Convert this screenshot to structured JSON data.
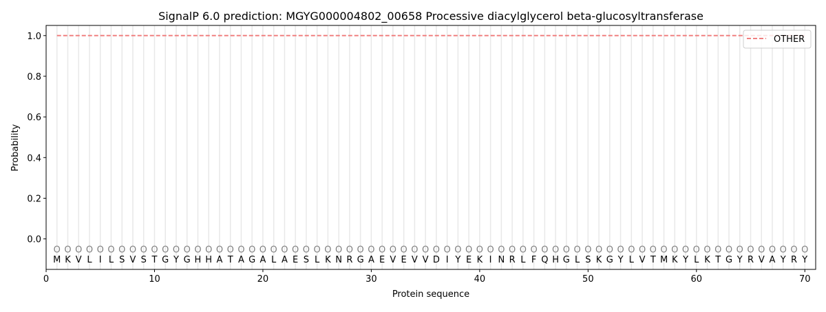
{
  "chart_data": {
    "type": "line",
    "title": "SignalP 6.0 prediction: MGYG000004802_00658 Processive diacylglycerol beta-glucosyltransferase",
    "xlabel": "Protein sequence",
    "ylabel": "Probability",
    "xlim": [
      0,
      71
    ],
    "ylim": [
      -0.15,
      1.05
    ],
    "xticks": [
      0,
      10,
      20,
      30,
      40,
      50,
      60,
      70
    ],
    "yticks": [
      0.0,
      0.2,
      0.4,
      0.6,
      0.8,
      1.0
    ],
    "ytick_labels": [
      "0.0",
      "0.2",
      "0.4",
      "0.6",
      "0.8",
      "1.0"
    ],
    "grid": "vertical lines at each residue",
    "legend": "top-right",
    "sequence": [
      "M",
      "K",
      "V",
      "L",
      "I",
      "L",
      "S",
      "V",
      "S",
      "T",
      "G",
      "Y",
      "G",
      "H",
      "H",
      "A",
      "T",
      "A",
      "G",
      "A",
      "L",
      "A",
      "E",
      "S",
      "L",
      "K",
      "N",
      "R",
      "G",
      "A",
      "E",
      "V",
      "E",
      "V",
      "V",
      "D",
      "I",
      "Y",
      "E",
      "K",
      "I",
      "N",
      "R",
      "L",
      "F",
      "Q",
      "H",
      "G",
      "L",
      "S",
      "K",
      "G",
      "Y",
      "L",
      "V",
      "T",
      "M",
      "K",
      "Y",
      "L",
      "K",
      "T",
      "G",
      "Y",
      "R",
      "V",
      "A",
      "Y",
      "R",
      "Y"
    ],
    "predicted_label": "O",
    "series": [
      {
        "name": "OTHER",
        "color": "#f08080",
        "style": "dashed",
        "x_range": [
          1,
          70
        ],
        "value": 1.0
      }
    ]
  }
}
